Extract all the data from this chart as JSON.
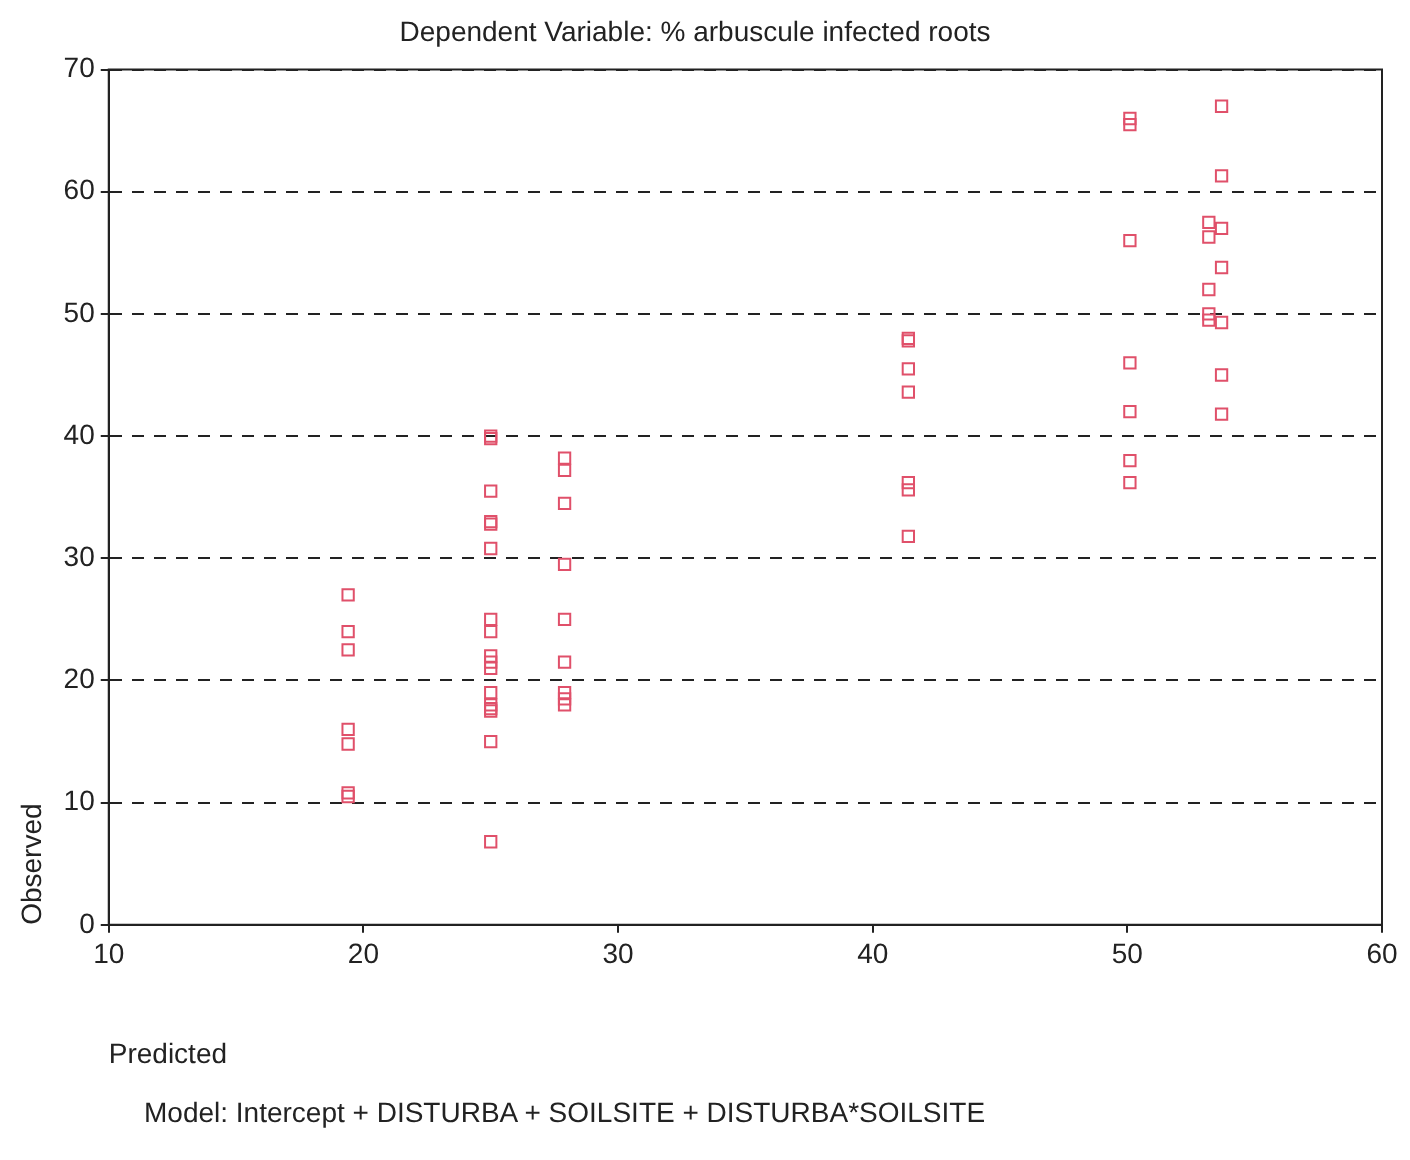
{
  "chart_data": {
    "type": "scatter",
    "title": "Dependent Variable: % arbuscule infected roots",
    "xlabel": "Predicted",
    "ylabel": "Observed",
    "marker": "square",
    "grid": "y",
    "legend": false,
    "xlim": [
      10,
      60
    ],
    "xticks": [
      10,
      20,
      30,
      40,
      50,
      60
    ],
    "ylim": [
      0,
      70
    ],
    "yticks": [
      0,
      10,
      20,
      30,
      40,
      50,
      60,
      70
    ],
    "annotations": [
      "Model: Intercept + DISTURBA + SOILSITE + DISTURBA*SOILSITE"
    ],
    "series": [
      {
        "color": "#e0506a",
        "x": [
          19.4,
          19.4,
          19.4,
          19.4,
          19.4,
          19.4,
          19.4,
          25,
          25,
          25,
          25,
          25,
          25,
          25,
          25,
          25,
          25,
          25,
          25,
          25,
          25,
          25,
          25,
          25,
          27.9,
          27.9,
          27.9,
          27.9,
          27.9,
          27.9,
          27.9,
          27.9,
          27.9,
          41.4,
          41.4,
          41.4,
          41.4,
          41.4,
          41.4,
          41.4,
          50.1,
          50.1,
          50.1,
          50.1,
          50.1,
          50.1,
          50.1,
          53.2,
          53.2,
          53.2,
          53.2,
          53.2,
          53.7,
          53.7,
          53.7,
          53.7,
          53.7,
          53.7,
          53.7
        ],
        "values": [
          27,
          24,
          22.5,
          16,
          14.8,
          10.8,
          10.5,
          40,
          39.8,
          35.5,
          33,
          32.8,
          30.8,
          25,
          24,
          22,
          21.5,
          21,
          19,
          18,
          17.5,
          15,
          6.8,
          17.7,
          38.2,
          37.2,
          34.5,
          29.5,
          25,
          21.5,
          19,
          18.5,
          18,
          48,
          47.8,
          45.5,
          43.6,
          36.2,
          35.6,
          31.8,
          66,
          65.5,
          56,
          46,
          42,
          38,
          36.2,
          57.5,
          56.3,
          52,
          50,
          49.5,
          67,
          61.3,
          57,
          53.8,
          49.3,
          45,
          41.8
        ]
      }
    ]
  }
}
